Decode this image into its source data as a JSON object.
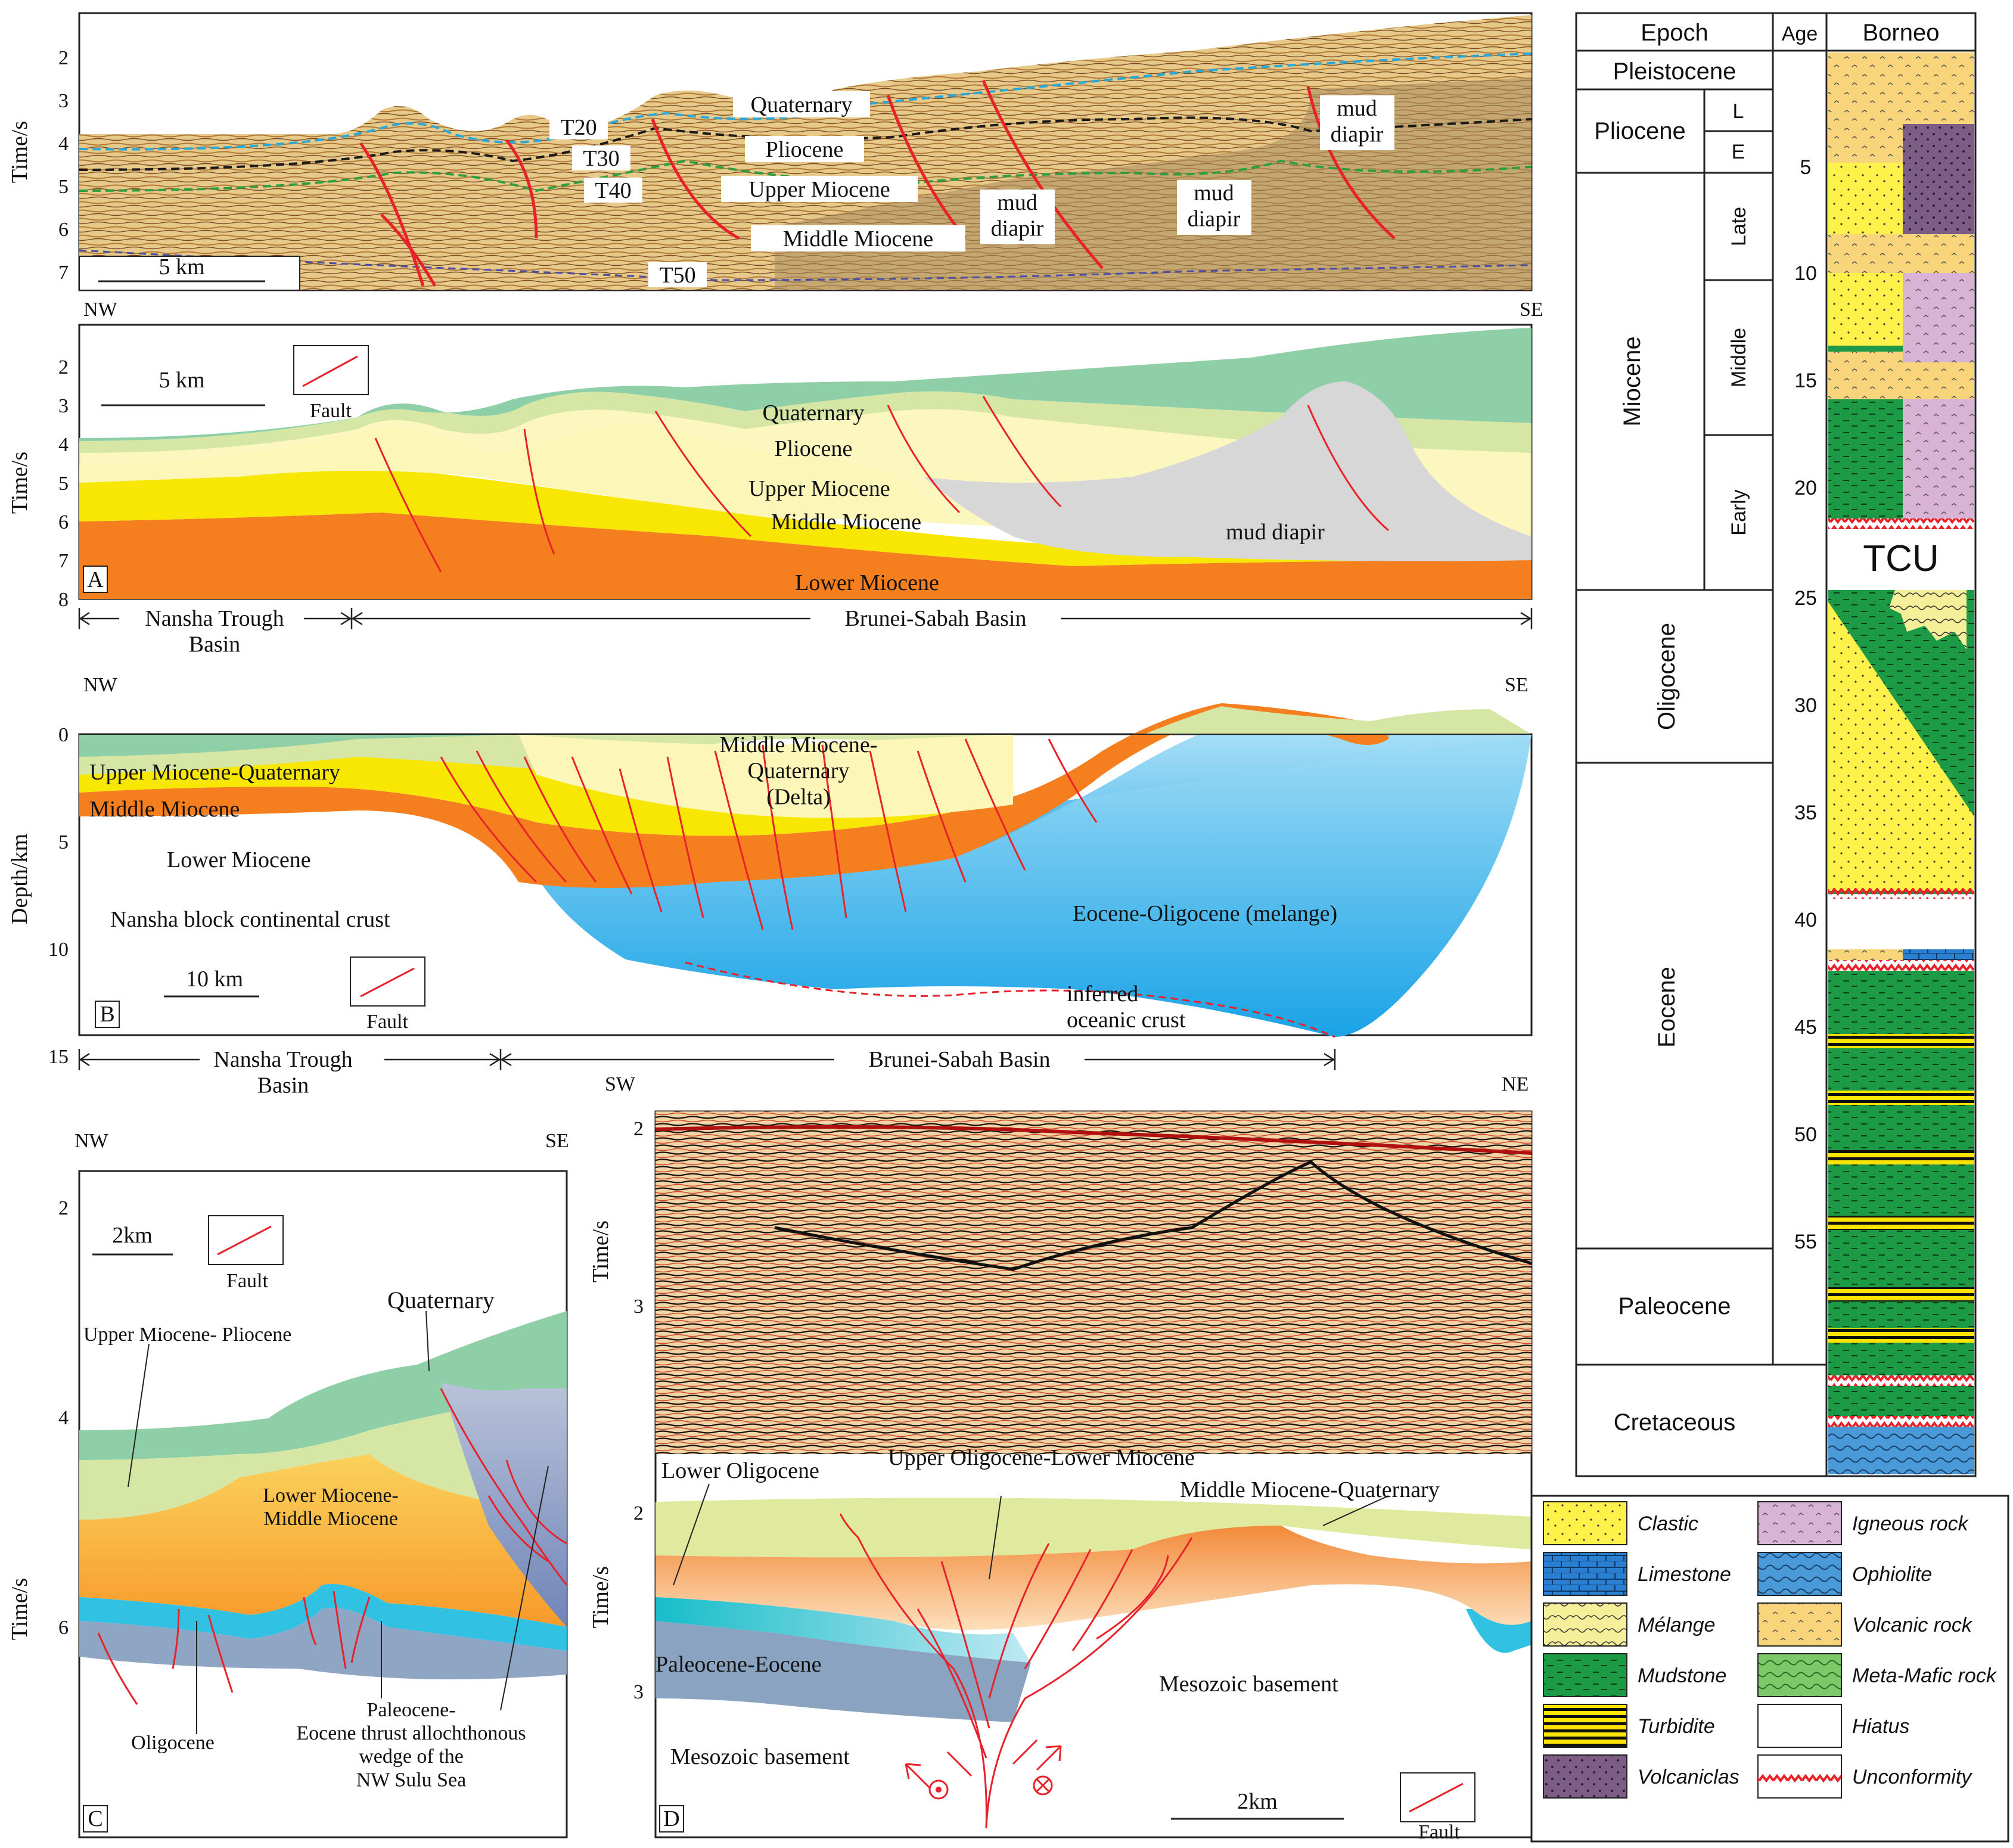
{
  "panel_top": {
    "time_axis": {
      "title": "Time/s",
      "ticks": [
        "2",
        "3",
        "4",
        "5",
        "6",
        "7"
      ]
    },
    "scale_bar": "5 km",
    "directions": {
      "left": "NW",
      "right": "SE"
    },
    "horizons": [
      "T20",
      "T30",
      "T40",
      "T50"
    ],
    "units": [
      "Quaternary",
      "Pliocene",
      "Upper  Miocene",
      "Middle  Miocene"
    ],
    "diapirs": [
      "mud\ndiapir",
      "mud\ndiapir",
      "mud\ndiapir"
    ]
  },
  "panel_a": {
    "tag": "A",
    "time_axis": {
      "title": "Time/s",
      "ticks": [
        "2",
        "3",
        "4",
        "5",
        "6",
        "7",
        "8"
      ]
    },
    "scale_bar": "5 km",
    "fault_legend": "Fault",
    "units": [
      "Quaternary",
      "Pliocene",
      "Upper  Miocene",
      "Middle  Miocene",
      "Lower Miocene",
      "mud diapir"
    ],
    "basins": [
      "Nansha Trough\nBasin",
      "Brunei-Sabah Basin"
    ],
    "directions": {
      "left": "NW",
      "right": "SE"
    }
  },
  "panel_b": {
    "tag": "B",
    "depth_axis": {
      "title": "Depth/km",
      "ticks": [
        "0",
        "5",
        "10",
        "15"
      ]
    },
    "scale_bar": "10 km",
    "fault_legend": "Fault",
    "units": [
      "Upper Miocene-Quaternary",
      "Middle Miocene",
      "Lower Miocene",
      "Middle Miocene-\nQuaternary\n(Delta)",
      "Nansha block continental crust",
      "Eocene-Oligocene (melange)",
      "inferred\noceanic crust"
    ],
    "basins": [
      "Nansha Trough\nBasin",
      "Brunei-Sabah Basin"
    ]
  },
  "panel_c": {
    "tag": "C",
    "directions": {
      "left": "NW",
      "right": "SE"
    },
    "time_axis": {
      "title": "Time/s",
      "ticks": [
        "2",
        "4",
        "6"
      ]
    },
    "scale_bar": "2km",
    "fault_legend": "Fault",
    "units": [
      "Quaternary",
      "Upper Miocene- Pliocene",
      "Lower Miocene-\nMiddle Miocene",
      "Oligocene",
      "Paleocene-\nEocene thrust allochthonous\nwedge of the\nNW Sulu Sea"
    ]
  },
  "panel_d": {
    "tag": "D",
    "directions": {
      "left": "SW",
      "right": "NE"
    },
    "time_axis_upper": {
      "title": "Time/s",
      "ticks": [
        "2",
        "3"
      ]
    },
    "time_axis_lower": {
      "title": "Time/s",
      "ticks": [
        "2",
        "3"
      ]
    },
    "scale_bar": "2km",
    "fault_legend": "Fault",
    "units": [
      "Lower Oligocene",
      "Upper Oligocene-Lower Miocene",
      "Middle Miocene-Quaternary",
      "Paleocene-Eocene",
      "Mesozoic basement",
      "Mesozoic basement"
    ]
  },
  "stratigraphy": {
    "headers": {
      "epoch": "Epoch",
      "age": "Age",
      "column": "Borneo"
    },
    "epochs": [
      "Pleistocene",
      "Pliocene",
      "Miocene",
      "Oligocene",
      "Eocene",
      "Paleocene",
      "Cretaceous"
    ],
    "pliocene_sub": [
      "L",
      "E"
    ],
    "miocene_sub": [
      "Late",
      "Middle",
      "Early"
    ],
    "ages": [
      "5",
      "10",
      "15",
      "20",
      "25",
      "30",
      "35",
      "40",
      "45",
      "50",
      "55"
    ],
    "tcu": "TCU"
  },
  "legend": {
    "items": [
      "Clastic",
      "Limestone",
      "Mélange",
      "Mudstone",
      "Turbidite",
      "Volcaniclas",
      "Igneous rock",
      "Ophiolite",
      "Volcanic rock",
      "Meta-Mafic rock",
      "Hiatus",
      "Unconformity"
    ]
  },
  "colors": {
    "quaternary": "#8fcfa7",
    "pliocene": "#d5e6a5",
    "upper_miocene": "#fcf6b8",
    "middle_miocene": "#f8e603",
    "lower_miocene": "#f57f1f",
    "mud_diapir": "#d7d7d7",
    "ocean_crust": "#4ec3ef",
    "mudstone": "#1c9a46",
    "clastic": "#fef24a",
    "fault": "#e8222a"
  }
}
